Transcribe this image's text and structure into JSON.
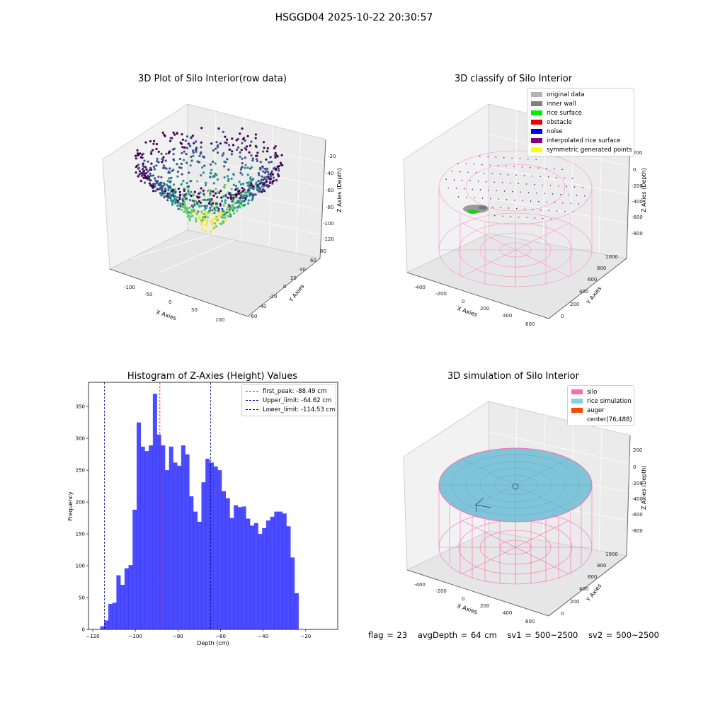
{
  "suptitle": "HSGGD04 2025-10-22 20:30:57",
  "plot1": {
    "title": "3D Plot of Silo Interior(row data)",
    "xlabel": "X Axies",
    "ylabel": "Y Axies",
    "zlabel": "Z Axies (Depth)",
    "x_ticks": [
      "-100",
      "-50",
      "0",
      "50",
      "100"
    ],
    "y_ticks": [
      "-60",
      "-40",
      "-20",
      "0",
      "20",
      "40",
      "60",
      "80"
    ],
    "z_ticks": [
      "-20",
      "-40",
      "-60",
      "-80",
      "-100",
      "-120"
    ]
  },
  "plot2": {
    "title": "3D classify of Silo Interior",
    "xlabel": "X Axies",
    "ylabel": "Y Axies",
    "zlabel": "Z Axies (Depth)",
    "x_ticks": [
      "-400",
      "-200",
      "0",
      "200",
      "400",
      "600"
    ],
    "y_ticks": [
      "0",
      "200",
      "400",
      "600",
      "800",
      "1000"
    ],
    "z_ticks": [
      "200",
      "0",
      "-200",
      "-400",
      "-600",
      "-800"
    ],
    "legend": [
      {
        "label": "original data",
        "color": "#b3b3b3"
      },
      {
        "label": "inner wall",
        "color": "#808080"
      },
      {
        "label": "rice surface",
        "color": "#00ee00"
      },
      {
        "label": "obstacle",
        "color": "#ee0000"
      },
      {
        "label": "noise",
        "color": "#0000ee"
      },
      {
        "label": "interpolated rice surface",
        "color": "#800080"
      },
      {
        "label": "symmetric generated points",
        "color": "#ffff00"
      }
    ]
  },
  "plot3": {
    "title": "3D simulation of Silo Interior",
    "xlabel": "X Axies",
    "ylabel": "Y Axies",
    "zlabel": "Z Axies (Depth)",
    "x_ticks": [
      "-400",
      "-200",
      "0",
      "200",
      "400",
      "600"
    ],
    "y_ticks": [
      "0",
      "200",
      "400",
      "600",
      "800",
      "1000"
    ],
    "z_ticks": [
      "200",
      "0",
      "-200",
      "-400",
      "-600",
      "-800"
    ],
    "legend": [
      {
        "label": "silo",
        "color": "#ff69b4"
      },
      {
        "label": "rice simulation",
        "color": "#87ceeb"
      },
      {
        "label": "auger",
        "color": "#ff4500"
      },
      {
        "label": "center(76,488)",
        "color": ""
      }
    ]
  },
  "footer": {
    "flag": "flag = 23",
    "avg": "avgDepth = 64 cm",
    "sv1": "sv1 = 500~2500",
    "sv2": "sv2 = 500~2500"
  },
  "chart_data": {
    "type": "bar",
    "title": "Histogram of Z-Axies (Height) Values",
    "xlabel": "Depth (cm)",
    "ylabel": "Frequency",
    "xlim": [
      -122,
      -5
    ],
    "ylim": [
      0,
      388
    ],
    "x_ticks": [
      -120,
      -100,
      -80,
      -60,
      -40,
      -20
    ],
    "y_ticks": [
      0,
      50,
      100,
      150,
      200,
      250,
      300,
      350
    ],
    "bar_color": "#0000ff",
    "bin_start": -116.5,
    "bin_width": 1.9,
    "values": [
      5,
      14,
      40,
      42,
      85,
      70,
      96,
      101,
      188,
      325,
      287,
      280,
      289,
      370,
      306,
      289,
      250,
      287,
      262,
      257,
      289,
      275,
      209,
      185,
      169,
      231,
      268,
      262,
      256,
      250,
      217,
      206,
      175,
      195,
      192,
      193,
      174,
      163,
      167,
      150,
      159,
      171,
      177,
      185,
      185,
      182,
      162,
      113,
      57
    ],
    "lines": [
      {
        "label": "first_peak: -88.49 cm",
        "x": -88.49,
        "color": "#ff0000"
      },
      {
        "label": "Upper_limit: -64.62 cm",
        "x": -64.62,
        "color": "#00008b"
      },
      {
        "label": "Lower_limit: -114.53 cm",
        "x": -114.53,
        "color": "#00008b"
      }
    ]
  }
}
